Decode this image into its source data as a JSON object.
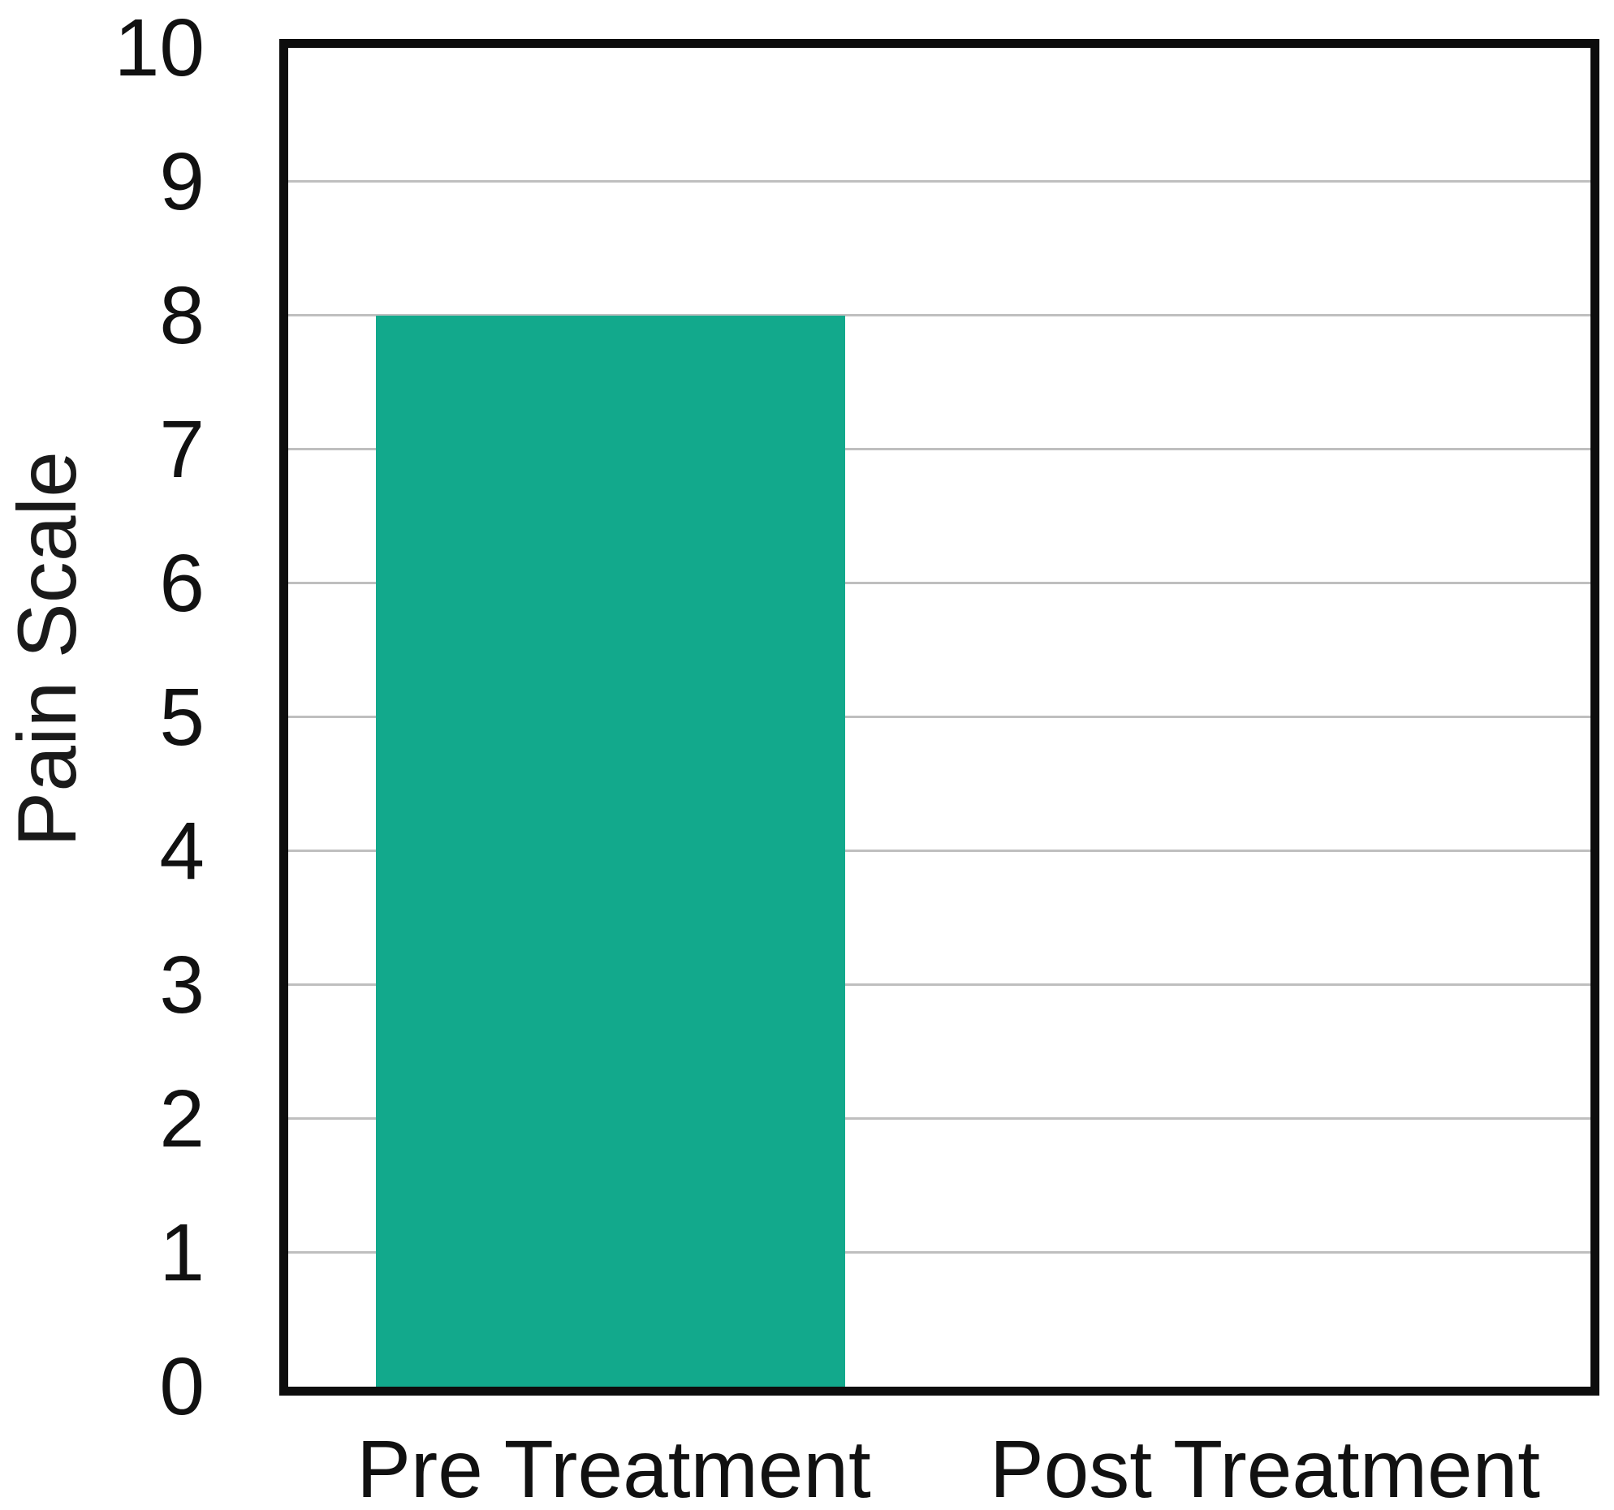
{
  "chart_data": {
    "type": "bar",
    "categories": [
      "Pre Treatment",
      "Post Treatment"
    ],
    "values": [
      8,
      0
    ],
    "title": "",
    "xlabel": "",
    "ylabel": "Pain Scale",
    "ylim": [
      0,
      10
    ],
    "yticks": [
      0,
      1,
      2,
      3,
      4,
      5,
      6,
      7,
      8,
      9,
      10
    ],
    "grid": true,
    "legend": "none",
    "bar_color": "#12a98c",
    "axis_frame_color": "#0d0d0d",
    "gridline_color": "#bfbfbf",
    "text_color": "#111111",
    "background_color": "#ffffff"
  }
}
